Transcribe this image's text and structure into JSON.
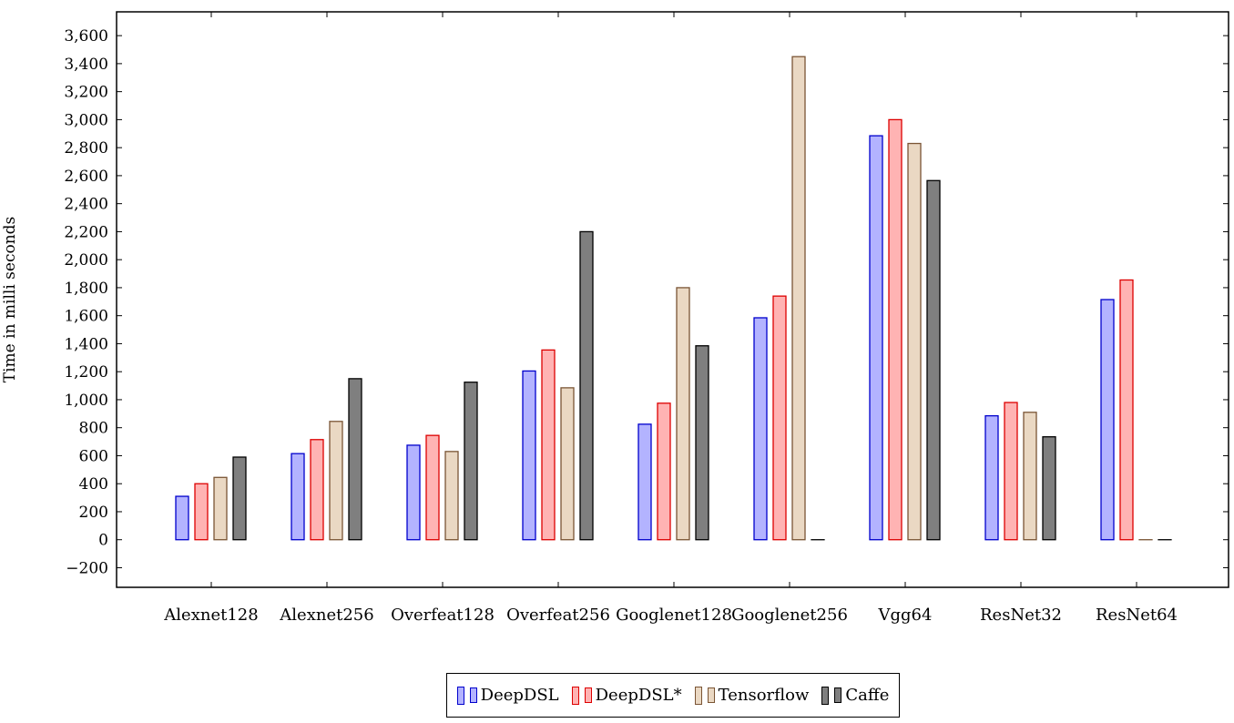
{
  "chart_data": {
    "type": "bar",
    "title": "",
    "xlabel": "",
    "ylabel": "Time in milli seconds",
    "ylim": [
      -340,
      3770
    ],
    "yticks": [
      -200,
      0,
      200,
      400,
      600,
      800,
      1000,
      1200,
      1400,
      1600,
      1800,
      2000,
      2200,
      2400,
      2600,
      2800,
      3000,
      3200,
      3400,
      3600
    ],
    "ytick_labels": [
      "−200",
      "0",
      "200",
      "400",
      "600",
      "800",
      "1,000",
      "1,200",
      "1,400",
      "1,600",
      "1,800",
      "2,000",
      "2,200",
      "2,400",
      "2,600",
      "2,800",
      "3,000",
      "3,200",
      "3,400",
      "3,600"
    ],
    "categories": [
      "Alexnet128",
      "Alexnet256",
      "Overfeat128",
      "Overfeat256",
      "Googlenet128",
      "Googlenet256",
      "Vgg64",
      "ResNet32",
      "ResNet64"
    ],
    "grid": false,
    "legend_position": "bottom-center",
    "series": [
      {
        "name": "DeepDSL",
        "fill": "#b3b3ff",
        "stroke": "#0000cc",
        "values": [
          310,
          615,
          675,
          1205,
          825,
          1585,
          2885,
          885,
          1715
        ]
      },
      {
        "name": "DeepDSL*",
        "fill": "#ffb3b3",
        "stroke": "#dd0000",
        "values": [
          400,
          715,
          745,
          1355,
          975,
          1740,
          3000,
          980,
          1855
        ]
      },
      {
        "name": "Tensorflow",
        "fill": "#ead8c3",
        "stroke": "#7a5535",
        "values": [
          445,
          845,
          630,
          1085,
          1800,
          3450,
          2830,
          910,
          0
        ]
      },
      {
        "name": "Caffe",
        "fill": "#7f7f7f",
        "stroke": "#000000",
        "values": [
          590,
          1150,
          1125,
          2200,
          1385,
          0,
          2565,
          735,
          0
        ]
      }
    ]
  }
}
